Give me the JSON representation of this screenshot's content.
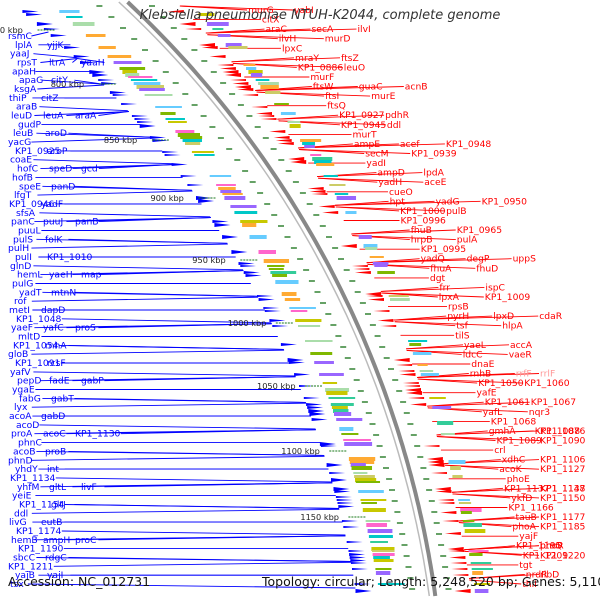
{
  "title": "Klebsiella pneumoniae NTUH-K2044, complete genome",
  "footer": {
    "accession": "Accession: NC_012731",
    "topology": "Topology: circular; Length: 5,248,520 bp; Genes: 5,110"
  },
  "colors": {
    "plus_strand": "#0000ff",
    "minus_strand": "#ff0000",
    "pseudogene": "#ff9999",
    "backbone": "#888888",
    "tick": "#006400"
  },
  "kbp_ticks": [
    {
      "label": "750 kbp"
    },
    {
      "label": "800 kbp"
    },
    {
      "label": "850 kbp"
    },
    {
      "label": "900 kbp"
    },
    {
      "label": "950 kbp"
    },
    {
      "label": "1000 kbp"
    },
    {
      "label": "1050 kbp"
    },
    {
      "label": "1100 kbp"
    },
    {
      "label": "1150 kbp"
    }
  ],
  "left_labels": [
    "rsmC",
    "lplA",
    "yjjK",
    "yaaJ",
    "rpsT",
    "ltrA",
    "yaaH",
    "apaH",
    "apaG",
    "citY",
    "ksgA",
    "thiP",
    "citZ",
    "araB",
    "leuD",
    "leuA",
    "araA",
    "gudP",
    "leuB",
    "aroD",
    "yacG",
    "KP1_0925",
    "aroP",
    "coaE",
    "hofC",
    "speD",
    "gcd",
    "hofB",
    "speE",
    "panD",
    "lfgT",
    "KP1_0946",
    "yadF",
    "sfsA",
    "panC",
    "puuJ",
    "panB",
    "puuL",
    "pulS",
    "folK",
    "pulH",
    "pulI",
    "KP1_1010",
    "glnD",
    "hemL",
    "yaeH",
    "map",
    "pulG",
    "yadT",
    "mtnN",
    "rof",
    "metI",
    "dapD",
    "KP1_1048",
    "yaeF",
    "yafC",
    "proS",
    "mltD",
    "KP1_1054",
    "rnhA",
    "gloB",
    "KP1_1091",
    "rcsF",
    "yafV",
    "pepD",
    "fadE",
    "gabP",
    "ygaE",
    "fabG",
    "gabT",
    "lyx",
    "acoA",
    "gabD",
    "acoD",
    "proA",
    "acoC",
    "KP1_1130",
    "phnC",
    "acoB",
    "proB",
    "phnD",
    "yhdY",
    "int",
    "KP1_1134",
    "yhfM",
    "gltL",
    "livF",
    "yeiE",
    "KP1_1154",
    "gltJ",
    "ddl",
    "livG",
    "eutB",
    "KP1_1174",
    "hemB",
    "ampH",
    "proC",
    "KP1_1190",
    "sbcC",
    "rdgC",
    "KP1_1211",
    "yajB",
    "yajI",
    "tsx"
  ],
  "right_labels": [
    "murG",
    "yabI",
    "citX",
    "araC",
    "secA",
    "ilvI",
    "ilvH",
    "murD",
    "lpxC",
    "mraY",
    "ftsZ",
    "KP1_0886",
    "leuO",
    "murF",
    "ftsW",
    "guaC",
    "acnB",
    "ftsI",
    "murE",
    "ftsQ",
    "KP1_0927",
    "pdhR",
    "KP1_0945",
    "ddl",
    "murT",
    "ampE",
    "acef",
    "KP1_0948",
    "secM",
    "KP1_0939",
    "yadI",
    "ampD",
    "lpdA",
    "yadH",
    "aceE",
    "cueO",
    "hpt",
    "yadG",
    "KP1_0950",
    "KP1_1000",
    "pulB",
    "KP1_0996",
    "fhuB",
    "KP1_0965",
    "hrpB",
    "pulA",
    "KP1_0995",
    "yadQ",
    "degP",
    "uppS",
    "fhuA",
    "fhuD",
    "dgt",
    "frr",
    "ispC",
    "lpxA",
    "KP1_1009",
    "rpsB",
    "pyrH",
    "lpxD",
    "cdaR",
    "tsf",
    "hlpA",
    "tilS",
    "yaeL",
    "accA",
    "ldcC",
    "vaeR",
    "dnaE",
    "rnhB",
    "rrfF",
    "rrlF",
    "KP1_1050",
    "KP1_1060",
    "yafE",
    "KP1_1061",
    "KP1_1067",
    "yafL",
    "nqr3",
    "KP1_1068",
    "gmhA",
    "KP1_1088",
    "KP1_1076",
    "KP1_1089",
    "KP1_1090",
    "crl",
    "xdhC",
    "KP1_1106",
    "acoK",
    "KP1_1127",
    "phoE",
    "KP1_1137",
    "KP1_1138",
    "KP1_1147",
    "ykfD",
    "KP1_1150",
    "KP1_1166",
    "tauB",
    "KP1_1177",
    "phoA",
    "KP1_1185",
    "yajF",
    "KP1_1195",
    "brnQ",
    "phoR",
    "KP1_1209",
    "KP1_1220",
    "tgt",
    "nrdR",
    "ribD",
    "thiI"
  ]
}
